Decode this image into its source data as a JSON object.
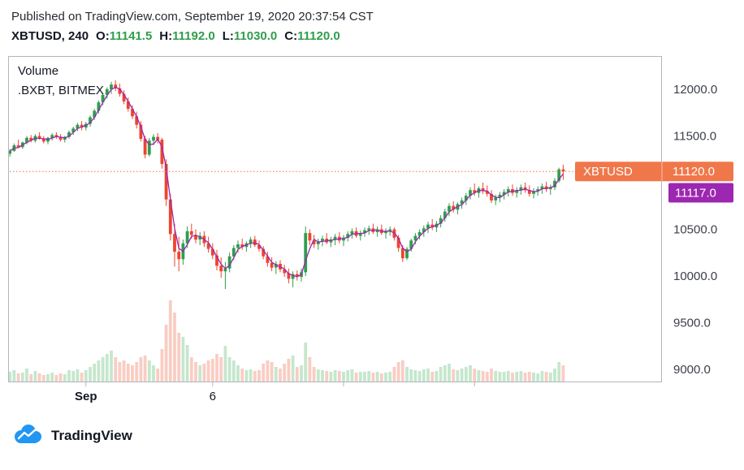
{
  "header": {
    "published_line": "Published on TradingView.com, September 19, 2020 20:37:54 CST",
    "symbol_line": {
      "symbol": "XBTUSD, 240",
      "o_label": "O:",
      "o": "11141.5",
      "h_label": "H:",
      "h": "11192.0",
      "l_label": "L:",
      "l": "11030.0",
      "c_label": "C:",
      "c": "11120.0"
    }
  },
  "legend": {
    "study": "Volume",
    "overlay": ".BXBT, BITMEX"
  },
  "footer": {
    "brand": "TradingView"
  },
  "price_labels": {
    "symbol_label": {
      "text": "XBTUSD",
      "value": "11120.0"
    },
    "index_label": {
      "value": "11117.0"
    }
  },
  "chart_data": {
    "type": "candlestick+volume",
    "symbol": "XBTUSD",
    "interval": "240",
    "exchange": "BITMEX",
    "last_ohlc": {
      "o": 11141.5,
      "h": 11192.0,
      "l": 11030.0,
      "c": 11120.0
    },
    "price_line": 11120.0,
    "index_line_value": 11117.0,
    "ylim": [
      8861,
      12356
    ],
    "grid": "off",
    "legend_position": "top-left",
    "y_ticks": [
      {
        "value": 12000,
        "label": "12000.0"
      },
      {
        "value": 11500,
        "label": "11500.0"
      },
      {
        "value": 10500,
        "label": "10500.0"
      },
      {
        "value": 10000,
        "label": "10000.0"
      },
      {
        "value": 9500,
        "label": "9500.0"
      },
      {
        "value": 9000,
        "label": "9000.0"
      }
    ],
    "x_ticks": [
      {
        "index": 18,
        "label": "Sep"
      },
      {
        "index": 48,
        "label": "6"
      },
      {
        "index": 79,
        "label": ""
      },
      {
        "index": 110,
        "label": ""
      }
    ],
    "colors": {
      "up": "#2f9e4c",
      "down": "#ee4430",
      "vol_up": "#c5e7cd",
      "vol_down": "#f9cdc3",
      "index_line": "#9c27b0",
      "price_label_bg": "#f0774a",
      "index_label_bg": "#9c27b0",
      "border": "#b2b5be",
      "axis_text": "#3c4048",
      "logo_blue": "#2196f3"
    },
    "candles": [
      [
        11310,
        11360,
        11280,
        11340,
        12
      ],
      [
        11340,
        11420,
        11330,
        11400,
        14
      ],
      [
        11400,
        11460,
        11370,
        11380,
        10
      ],
      [
        11380,
        11440,
        11360,
        11430,
        11
      ],
      [
        11430,
        11500,
        11410,
        11480,
        16
      ],
      [
        11480,
        11510,
        11430,
        11450,
        9
      ],
      [
        11450,
        11520,
        11430,
        11500,
        13
      ],
      [
        11500,
        11540,
        11460,
        11470,
        10
      ],
      [
        11470,
        11500,
        11420,
        11440,
        8
      ],
      [
        11440,
        11490,
        11410,
        11480,
        9
      ],
      [
        11480,
        11530,
        11450,
        11510,
        11
      ],
      [
        11510,
        11540,
        11470,
        11490,
        8
      ],
      [
        11490,
        11520,
        11440,
        11460,
        10
      ],
      [
        11460,
        11500,
        11430,
        11490,
        9
      ],
      [
        11490,
        11560,
        11470,
        11540,
        14
      ],
      [
        11540,
        11600,
        11510,
        11580,
        13
      ],
      [
        11580,
        11640,
        11550,
        11620,
        15
      ],
      [
        11620,
        11660,
        11560,
        11590,
        11
      ],
      [
        11590,
        11650,
        11560,
        11630,
        14
      ],
      [
        11630,
        11720,
        11600,
        11700,
        18
      ],
      [
        11700,
        11790,
        11670,
        11770,
        22
      ],
      [
        11770,
        11880,
        11740,
        11860,
        26
      ],
      [
        11860,
        11960,
        11830,
        11940,
        30
      ],
      [
        11940,
        12020,
        11900,
        12000,
        34
      ],
      [
        12000,
        12080,
        11950,
        12050,
        38
      ],
      [
        12050,
        12096,
        11980,
        12010,
        30
      ],
      [
        12010,
        12060,
        11920,
        11950,
        24
      ],
      [
        11950,
        11990,
        11840,
        11870,
        26
      ],
      [
        11870,
        11910,
        11760,
        11790,
        22
      ],
      [
        11790,
        11830,
        11680,
        11710,
        20
      ],
      [
        11710,
        11760,
        11580,
        11620,
        24
      ],
      [
        11620,
        11660,
        11440,
        11470,
        30
      ],
      [
        11470,
        11500,
        11260,
        11300,
        32
      ],
      [
        11300,
        11480,
        11280,
        11450,
        26
      ],
      [
        11450,
        11520,
        11400,
        11490,
        20
      ],
      [
        11490,
        11530,
        11420,
        11460,
        16
      ],
      [
        11460,
        11480,
        11150,
        11200,
        40
      ],
      [
        11200,
        11250,
        10750,
        10820,
        70
      ],
      [
        10820,
        10880,
        10380,
        10450,
        100
      ],
      [
        10450,
        10560,
        10100,
        10260,
        85
      ],
      [
        10260,
        10420,
        10050,
        10180,
        60
      ],
      [
        10180,
        10390,
        10120,
        10350,
        55
      ],
      [
        10350,
        10530,
        10300,
        10480,
        45
      ],
      [
        10480,
        10560,
        10400,
        10440,
        30
      ],
      [
        10440,
        10500,
        10350,
        10390,
        24
      ],
      [
        10390,
        10470,
        10330,
        10430,
        20
      ],
      [
        10430,
        10480,
        10310,
        10350,
        22
      ],
      [
        10350,
        10420,
        10250,
        10290,
        26
      ],
      [
        10290,
        10350,
        10180,
        10220,
        28
      ],
      [
        10220,
        10280,
        10060,
        10110,
        34
      ],
      [
        10110,
        10200,
        9980,
        10050,
        30
      ],
      [
        10050,
        10150,
        9861,
        10080,
        44
      ],
      [
        10080,
        10250,
        10040,
        10210,
        30
      ],
      [
        10210,
        10330,
        10170,
        10300,
        26
      ],
      [
        10300,
        10380,
        10250,
        10340,
        20
      ],
      [
        10340,
        10400,
        10280,
        10310,
        16
      ],
      [
        10310,
        10370,
        10260,
        10350,
        14
      ],
      [
        10350,
        10420,
        10300,
        10390,
        15
      ],
      [
        10390,
        10430,
        10310,
        10330,
        13
      ],
      [
        10330,
        10380,
        10260,
        10290,
        14
      ],
      [
        10290,
        10320,
        10180,
        10210,
        22
      ],
      [
        10210,
        10260,
        10100,
        10140,
        26
      ],
      [
        10140,
        10200,
        10050,
        10090,
        24
      ],
      [
        10090,
        10160,
        10020,
        10130,
        18
      ],
      [
        10130,
        10170,
        10040,
        10070,
        16
      ],
      [
        10070,
        10120,
        9990,
        10030,
        22
      ],
      [
        10030,
        10080,
        9920,
        9970,
        28
      ],
      [
        9970,
        10050,
        9878,
        10020,
        32
      ],
      [
        10020,
        10060,
        9950,
        9990,
        18
      ],
      [
        9990,
        10080,
        9940,
        10040,
        20
      ],
      [
        10040,
        10530,
        10000,
        10460,
        48
      ],
      [
        10460,
        10500,
        10330,
        10380,
        30
      ],
      [
        10380,
        10440,
        10300,
        10340,
        18
      ],
      [
        10340,
        10400,
        10280,
        10370,
        15
      ],
      [
        10370,
        10430,
        10320,
        10400,
        14
      ],
      [
        10400,
        10460,
        10340,
        10360,
        13
      ],
      [
        10360,
        10420,
        10310,
        10390,
        12
      ],
      [
        10390,
        10450,
        10330,
        10420,
        14
      ],
      [
        10420,
        10470,
        10350,
        10380,
        13
      ],
      [
        10380,
        10440,
        10320,
        10410,
        12
      ],
      [
        10410,
        10480,
        10370,
        10450,
        14
      ],
      [
        10450,
        10510,
        10400,
        10480,
        15
      ],
      [
        10480,
        10520,
        10410,
        10430,
        11
      ],
      [
        10430,
        10490,
        10380,
        10460,
        12
      ],
      [
        10460,
        10520,
        10420,
        10490,
        12
      ],
      [
        10490,
        10540,
        10440,
        10510,
        13
      ],
      [
        10510,
        10560,
        10450,
        10470,
        11
      ],
      [
        10470,
        10530,
        10420,
        10500,
        12
      ],
      [
        10500,
        10550,
        10440,
        10460,
        10
      ],
      [
        10460,
        10510,
        10400,
        10480,
        11
      ],
      [
        10480,
        10530,
        10430,
        10500,
        12
      ],
      [
        10500,
        10520,
        10380,
        10410,
        18
      ],
      [
        10410,
        10440,
        10260,
        10300,
        24
      ],
      [
        10300,
        10330,
        10150,
        10190,
        26
      ],
      [
        10190,
        10310,
        10170,
        10290,
        18
      ],
      [
        10290,
        10400,
        10260,
        10380,
        15
      ],
      [
        10380,
        10460,
        10340,
        10430,
        14
      ],
      [
        10430,
        10500,
        10390,
        10470,
        13
      ],
      [
        10470,
        10540,
        10420,
        10510,
        15
      ],
      [
        10510,
        10580,
        10460,
        10550,
        16
      ],
      [
        10550,
        10610,
        10490,
        10520,
        12
      ],
      [
        10520,
        10590,
        10470,
        10560,
        13
      ],
      [
        10560,
        10650,
        10520,
        10620,
        18
      ],
      [
        10620,
        10720,
        10580,
        10690,
        20
      ],
      [
        10690,
        10780,
        10640,
        10750,
        22
      ],
      [
        10750,
        10800,
        10680,
        10710,
        15
      ],
      [
        10710,
        10790,
        10660,
        10770,
        14
      ],
      [
        10770,
        10840,
        10720,
        10810,
        16
      ],
      [
        10810,
        10890,
        10760,
        10860,
        18
      ],
      [
        10860,
        10950,
        10820,
        10920,
        20
      ],
      [
        10920,
        10990,
        10860,
        10890,
        16
      ],
      [
        10890,
        10960,
        10840,
        10940,
        14
      ],
      [
        10940,
        11000,
        10880,
        10910,
        13
      ],
      [
        10910,
        10970,
        10850,
        10880,
        12
      ],
      [
        10880,
        10920,
        10780,
        10810,
        16
      ],
      [
        10810,
        10870,
        10760,
        10840,
        13
      ],
      [
        10840,
        10900,
        10790,
        10870,
        12
      ],
      [
        10870,
        10930,
        10820,
        10900,
        12
      ],
      [
        10900,
        10960,
        10850,
        10930,
        13
      ],
      [
        10930,
        10980,
        10860,
        10890,
        11
      ],
      [
        10890,
        10950,
        10840,
        10920,
        12
      ],
      [
        10920,
        10980,
        10870,
        10950,
        13
      ],
      [
        10950,
        11000,
        10890,
        10920,
        11
      ],
      [
        10920,
        10970,
        10850,
        10880,
        12
      ],
      [
        10880,
        10940,
        10830,
        10910,
        11
      ],
      [
        10910,
        10960,
        10860,
        10930,
        10
      ],
      [
        10930,
        10990,
        10880,
        10960,
        13
      ],
      [
        10960,
        11010,
        10900,
        10930,
        12
      ],
      [
        10930,
        10980,
        10870,
        10950,
        11
      ],
      [
        10950,
        11050,
        10920,
        11020,
        16
      ],
      [
        11020,
        11160,
        11000,
        11141.5,
        24
      ],
      [
        11141.5,
        11192,
        11030,
        11120,
        20
      ]
    ]
  }
}
